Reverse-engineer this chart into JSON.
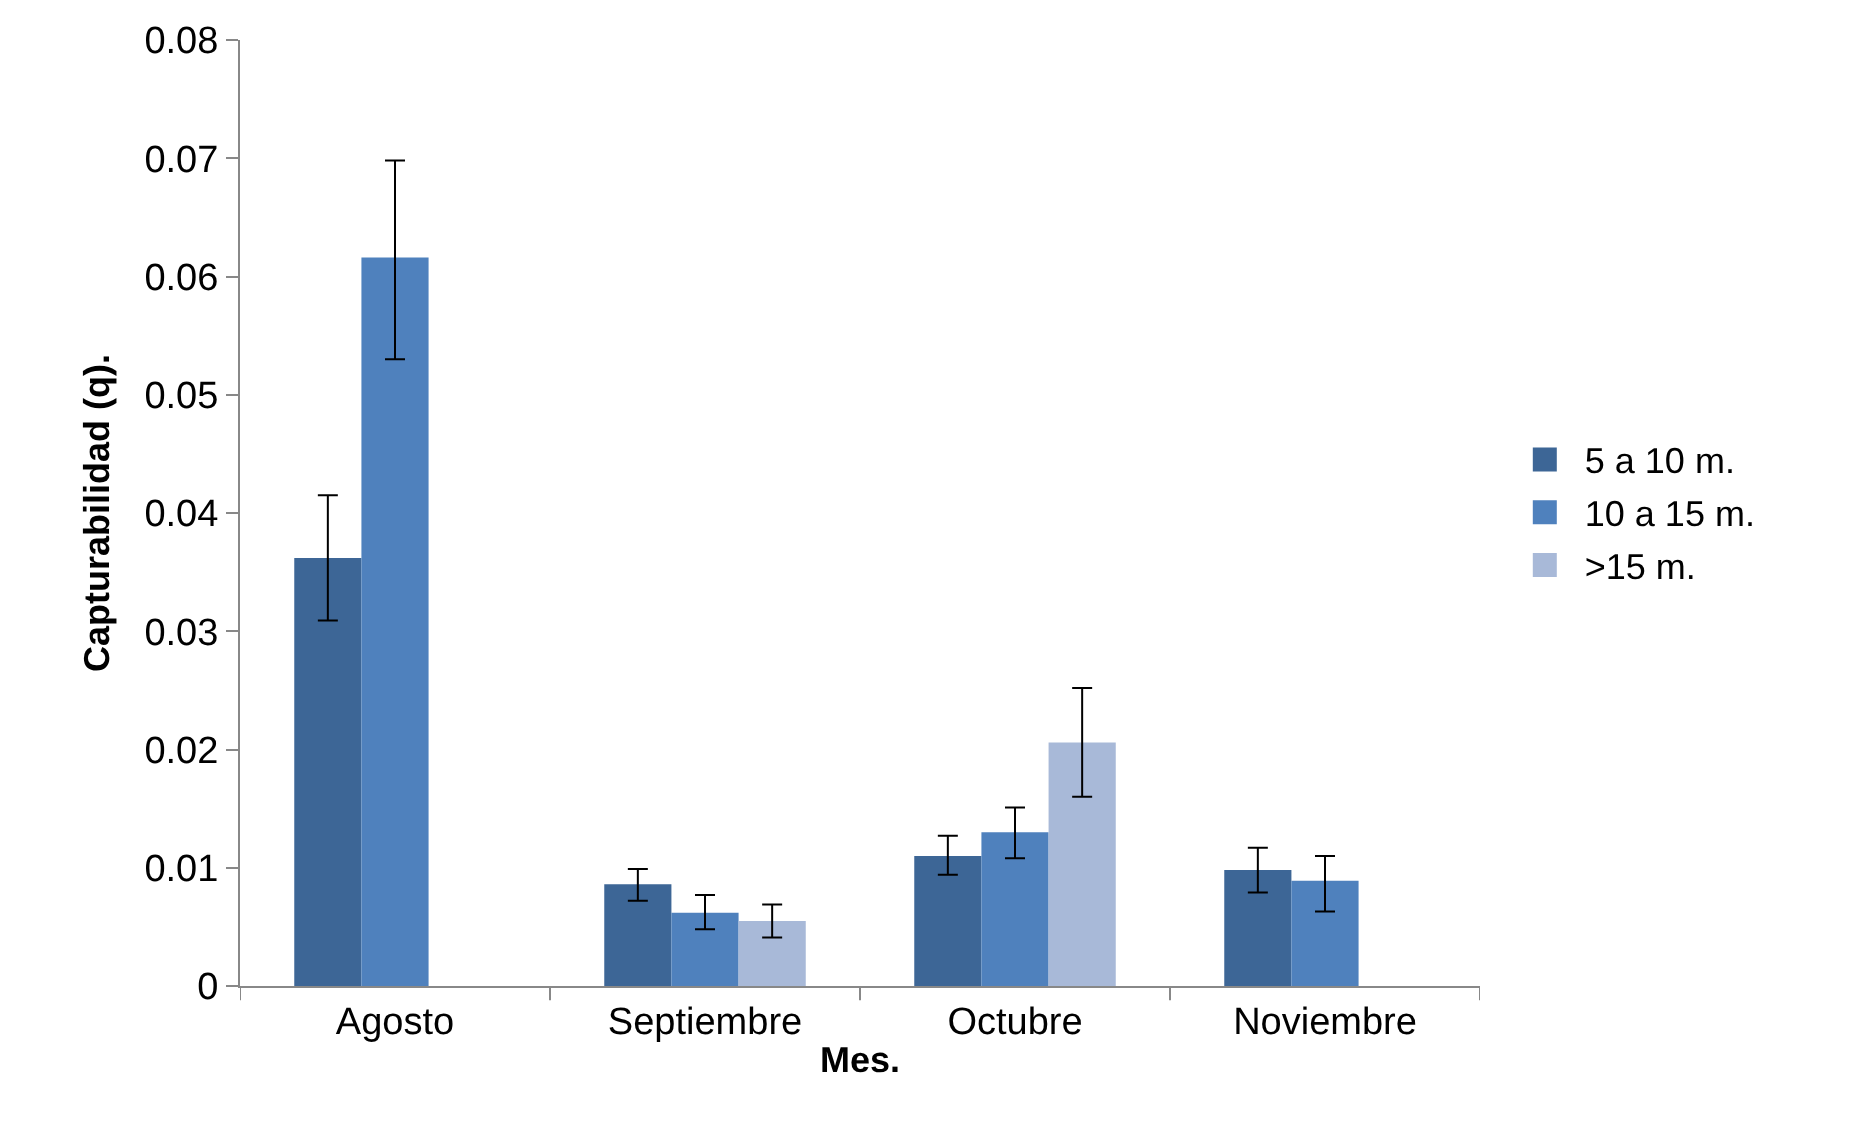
{
  "chart_data": {
    "type": "bar",
    "xlabel": "Mes.",
    "ylabel": "Capturabilidad (q).",
    "categories": [
      "Agosto",
      "Septiembre",
      "Octubre",
      "Noviembre"
    ],
    "series": [
      {
        "name": "5 a 10 m.",
        "color": "#3d6696",
        "values": [
          0.0362,
          0.0086,
          0.011,
          0.0098
        ],
        "errors": [
          [
            0.0309,
            0.0415
          ],
          [
            0.0072,
            0.0099
          ],
          [
            0.0094,
            0.0127
          ],
          [
            0.0079,
            0.0117
          ]
        ]
      },
      {
        "name": "10 a 15 m.",
        "color": "#4f81bd",
        "values": [
          0.0616,
          0.0062,
          0.013,
          0.0089
        ],
        "errors": [
          [
            0.053,
            0.0698
          ],
          [
            0.0048,
            0.0077
          ],
          [
            0.0108,
            0.0151
          ],
          [
            0.0063,
            0.011
          ]
        ]
      },
      {
        "name": ">15 m.",
        "color": "#a8b9d8",
        "values": [
          null,
          0.0055,
          0.0206,
          null
        ],
        "errors": [
          null,
          [
            0.0041,
            0.0069
          ],
          [
            0.016,
            0.0252
          ],
          null
        ]
      }
    ],
    "ylim": [
      0,
      0.08
    ],
    "yticks": [
      0,
      0.01,
      0.02,
      0.03,
      0.04,
      0.05,
      0.06,
      0.07,
      0.08
    ],
    "grid": false,
    "legend": "right"
  }
}
